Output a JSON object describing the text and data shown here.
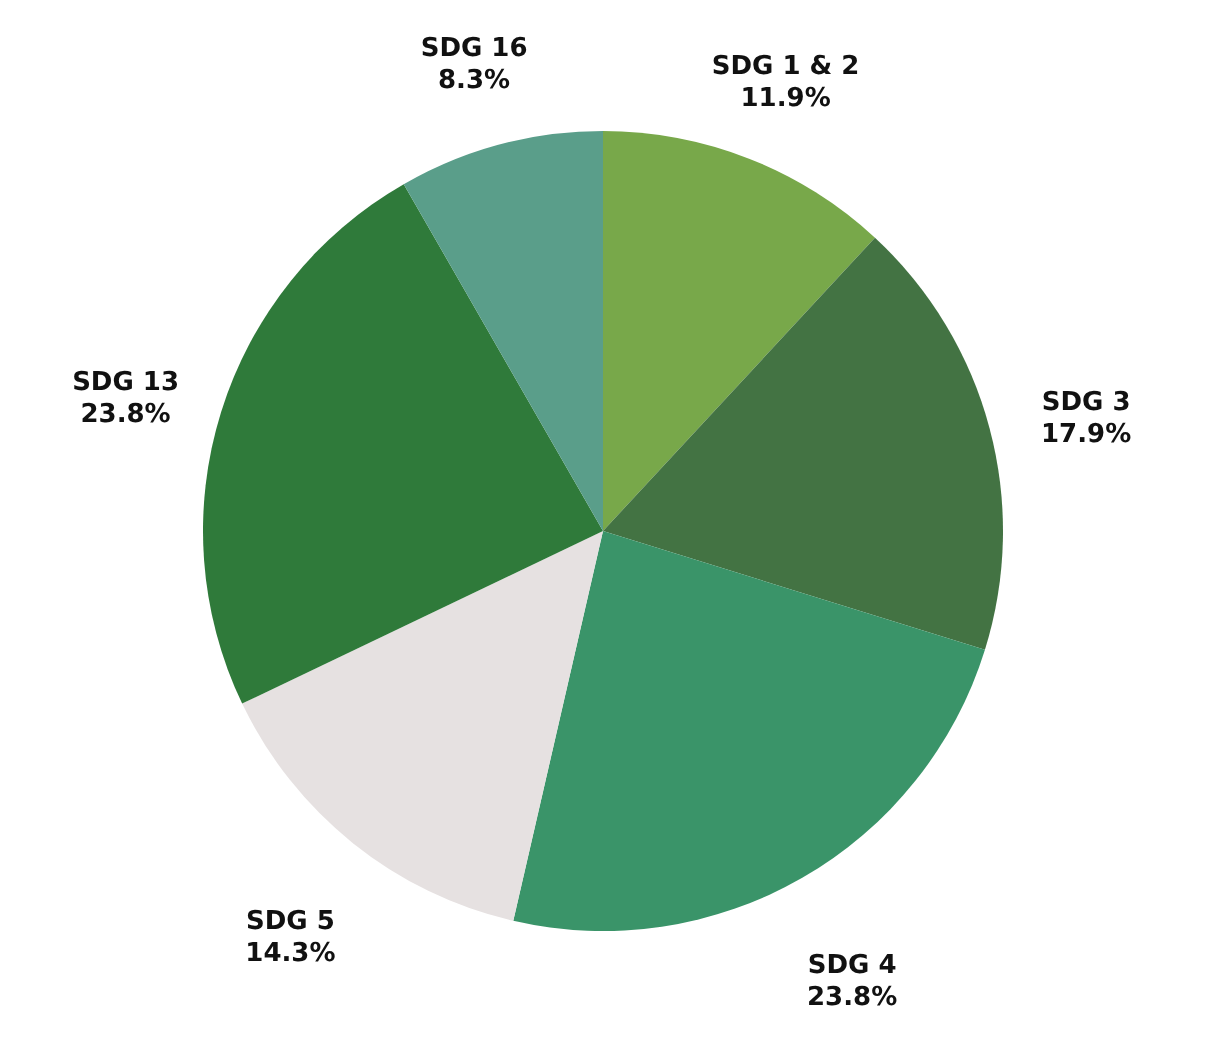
{
  "chart_data": {
    "type": "pie",
    "categories": [
      "SDG 1 & 2",
      "SDG 3",
      "SDG 4",
      "SDG 5",
      "SDG 13",
      "SDG 16"
    ],
    "values": [
      11.9,
      17.9,
      23.8,
      14.3,
      23.8,
      8.3
    ],
    "value_labels": [
      "11.9%",
      "17.9%",
      "23.8%",
      "14.3%",
      "23.8%",
      "8.3%"
    ],
    "colors": [
      "#78a84a",
      "#437343",
      "#3a9469",
      "#e6e1e1",
      "#2f7a3a",
      "#5a9e8a"
    ]
  }
}
